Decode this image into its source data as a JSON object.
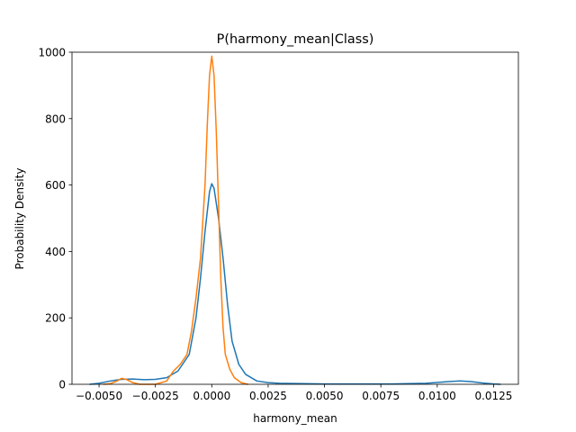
{
  "chart_data": {
    "type": "line",
    "title": "P(harmony_mean|Class)",
    "xlabel": "harmony_mean",
    "ylabel": "Probability Density",
    "xlim": [
      -0.0062,
      0.0136
    ],
    "ylim": [
      0,
      1000
    ],
    "xticks": [
      -0.005,
      -0.0025,
      0.0,
      0.0025,
      0.005,
      0.0075,
      0.01,
      0.0125
    ],
    "xtick_labels": [
      "−0.0050",
      "−0.0025",
      "0.0000",
      "0.0025",
      "0.0050",
      "0.0075",
      "0.0100",
      "0.0125"
    ],
    "yticks": [
      0,
      200,
      400,
      600,
      800,
      1000
    ],
    "ytick_labels": [
      "0",
      "200",
      "400",
      "600",
      "800",
      "1000"
    ],
    "grid": false,
    "series": [
      {
        "color": "#1f77b4",
        "points": [
          [
            -0.0054,
            0
          ],
          [
            -0.005,
            3
          ],
          [
            -0.0045,
            10
          ],
          [
            -0.004,
            15
          ],
          [
            -0.0035,
            16
          ],
          [
            -0.003,
            14
          ],
          [
            -0.0025,
            15
          ],
          [
            -0.002,
            20
          ],
          [
            -0.0015,
            40
          ],
          [
            -0.001,
            90
          ],
          [
            -0.0007,
            200
          ],
          [
            -0.0005,
            320
          ],
          [
            -0.0003,
            460
          ],
          [
            -0.0001,
            580
          ],
          [
            0.0,
            604
          ],
          [
            0.0001,
            590
          ],
          [
            0.0003,
            500
          ],
          [
            0.0005,
            380
          ],
          [
            0.0007,
            240
          ],
          [
            0.0009,
            130
          ],
          [
            0.0012,
            60
          ],
          [
            0.0015,
            30
          ],
          [
            0.002,
            10
          ],
          [
            0.0025,
            5
          ],
          [
            0.003,
            3
          ],
          [
            0.005,
            1
          ],
          [
            0.008,
            1
          ],
          [
            0.0095,
            3
          ],
          [
            0.0105,
            8
          ],
          [
            0.011,
            10
          ],
          [
            0.0115,
            8
          ],
          [
            0.012,
            4
          ],
          [
            0.0125,
            1
          ],
          [
            0.0128,
            0
          ]
        ]
      },
      {
        "color": "#ff7f0e",
        "points": [
          [
            -0.0048,
            0
          ],
          [
            -0.0045,
            2
          ],
          [
            -0.0042,
            10
          ],
          [
            -0.004,
            18
          ],
          [
            -0.0038,
            15
          ],
          [
            -0.0035,
            5
          ],
          [
            -0.0032,
            0
          ],
          [
            -0.0025,
            0
          ],
          [
            -0.002,
            10
          ],
          [
            -0.0017,
            40
          ],
          [
            -0.0014,
            60
          ],
          [
            -0.0011,
            90
          ],
          [
            -0.0009,
            160
          ],
          [
            -0.0007,
            260
          ],
          [
            -0.0005,
            380
          ],
          [
            -0.0003,
            600
          ],
          [
            -0.0002,
            780
          ],
          [
            -0.0001,
            930
          ],
          [
            0.0,
            988
          ],
          [
            0.0001,
            930
          ],
          [
            0.0002,
            760
          ],
          [
            0.0003,
            540
          ],
          [
            0.0004,
            320
          ],
          [
            0.0005,
            170
          ],
          [
            0.0006,
            90
          ],
          [
            0.0008,
            45
          ],
          [
            0.001,
            20
          ],
          [
            0.0013,
            5
          ],
          [
            0.0016,
            0
          ]
        ]
      }
    ]
  }
}
